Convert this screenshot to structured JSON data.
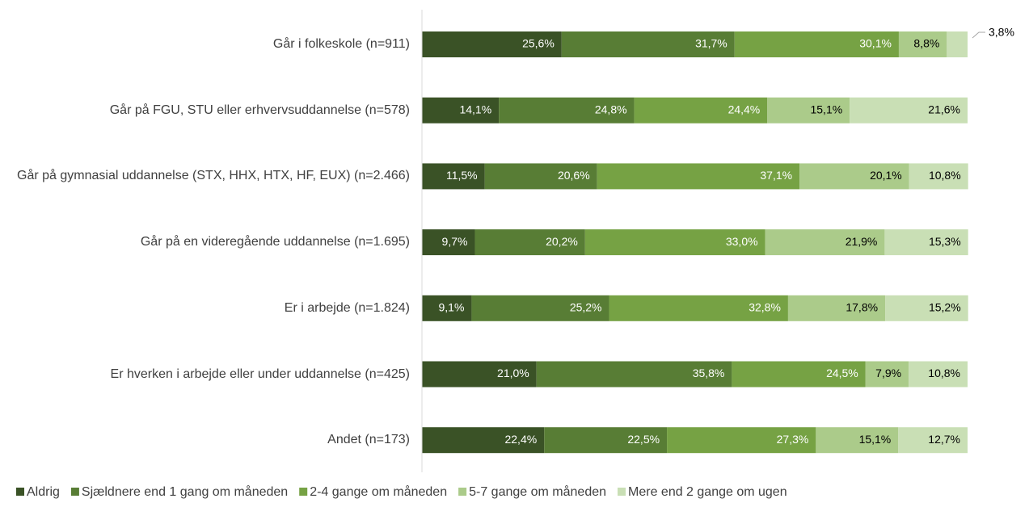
{
  "chart_data": {
    "type": "stacked_bar_horizontal",
    "categories": [
      "Går i folkeskole (n=911)",
      "Går på FGU, STU eller erhvervsuddannelse (n=578)",
      "Går på gymnasial uddannelse (STX, HHX, HTX, HF, EUX) (n=2.466)",
      "Går på en videregående uddannelse (n=1.695)",
      "Er i arbejde (n=1.824)",
      "Er hverken i arbejde eller under uddannelse (n=425)",
      "Andet (n=173)"
    ],
    "xlim": [
      0,
      100
    ],
    "legend": "bottom",
    "series": [
      {
        "name": "Aldrig",
        "color": "#3a5226",
        "label_color": "#ffffff",
        "values": [
          25.6,
          14.1,
          11.5,
          9.7,
          9.1,
          21.0,
          22.4
        ],
        "value_labels": [
          "25,6%",
          "14,1%",
          "11,5%",
          "9,7%",
          "9,1%",
          "21,0%",
          "22,4%"
        ]
      },
      {
        "name": "Sjældnere end 1 gang om måneden",
        "color": "#587d35",
        "label_color": "#ffffff",
        "values": [
          31.7,
          24.8,
          20.6,
          20.2,
          25.2,
          35.8,
          22.5
        ],
        "value_labels": [
          "31,7%",
          "24,8%",
          "20,6%",
          "20,2%",
          "25,2%",
          "35,8%",
          "22,5%"
        ]
      },
      {
        "name": "2-4 gange om måneden",
        "color": "#76a244",
        "label_color": "#ffffff",
        "values": [
          30.1,
          24.4,
          37.1,
          33.0,
          32.8,
          24.5,
          27.3
        ],
        "value_labels": [
          "30,1%",
          "24,4%",
          "37,1%",
          "33,0%",
          "32,8%",
          "24,5%",
          "27,3%"
        ]
      },
      {
        "name": "5-7 gange om måneden",
        "color": "#abcb8a",
        "label_color": "#000000",
        "values": [
          8.8,
          15.1,
          20.1,
          21.9,
          17.8,
          7.9,
          15.1
        ],
        "value_labels": [
          "8,8%",
          "15,1%",
          "20,1%",
          "21,9%",
          "17,8%",
          "7,9%",
          "15,1%"
        ]
      },
      {
        "name": "Mere end 2 gange om ugen",
        "color": "#c9dfb5",
        "label_color": "#000000",
        "values": [
          3.8,
          21.6,
          10.8,
          15.3,
          15.2,
          10.8,
          12.7
        ],
        "value_labels": [
          "3,8%",
          "21,6%",
          "10,8%",
          "15,3%",
          "15,2%",
          "10,8%",
          "12,7%"
        ]
      }
    ]
  }
}
